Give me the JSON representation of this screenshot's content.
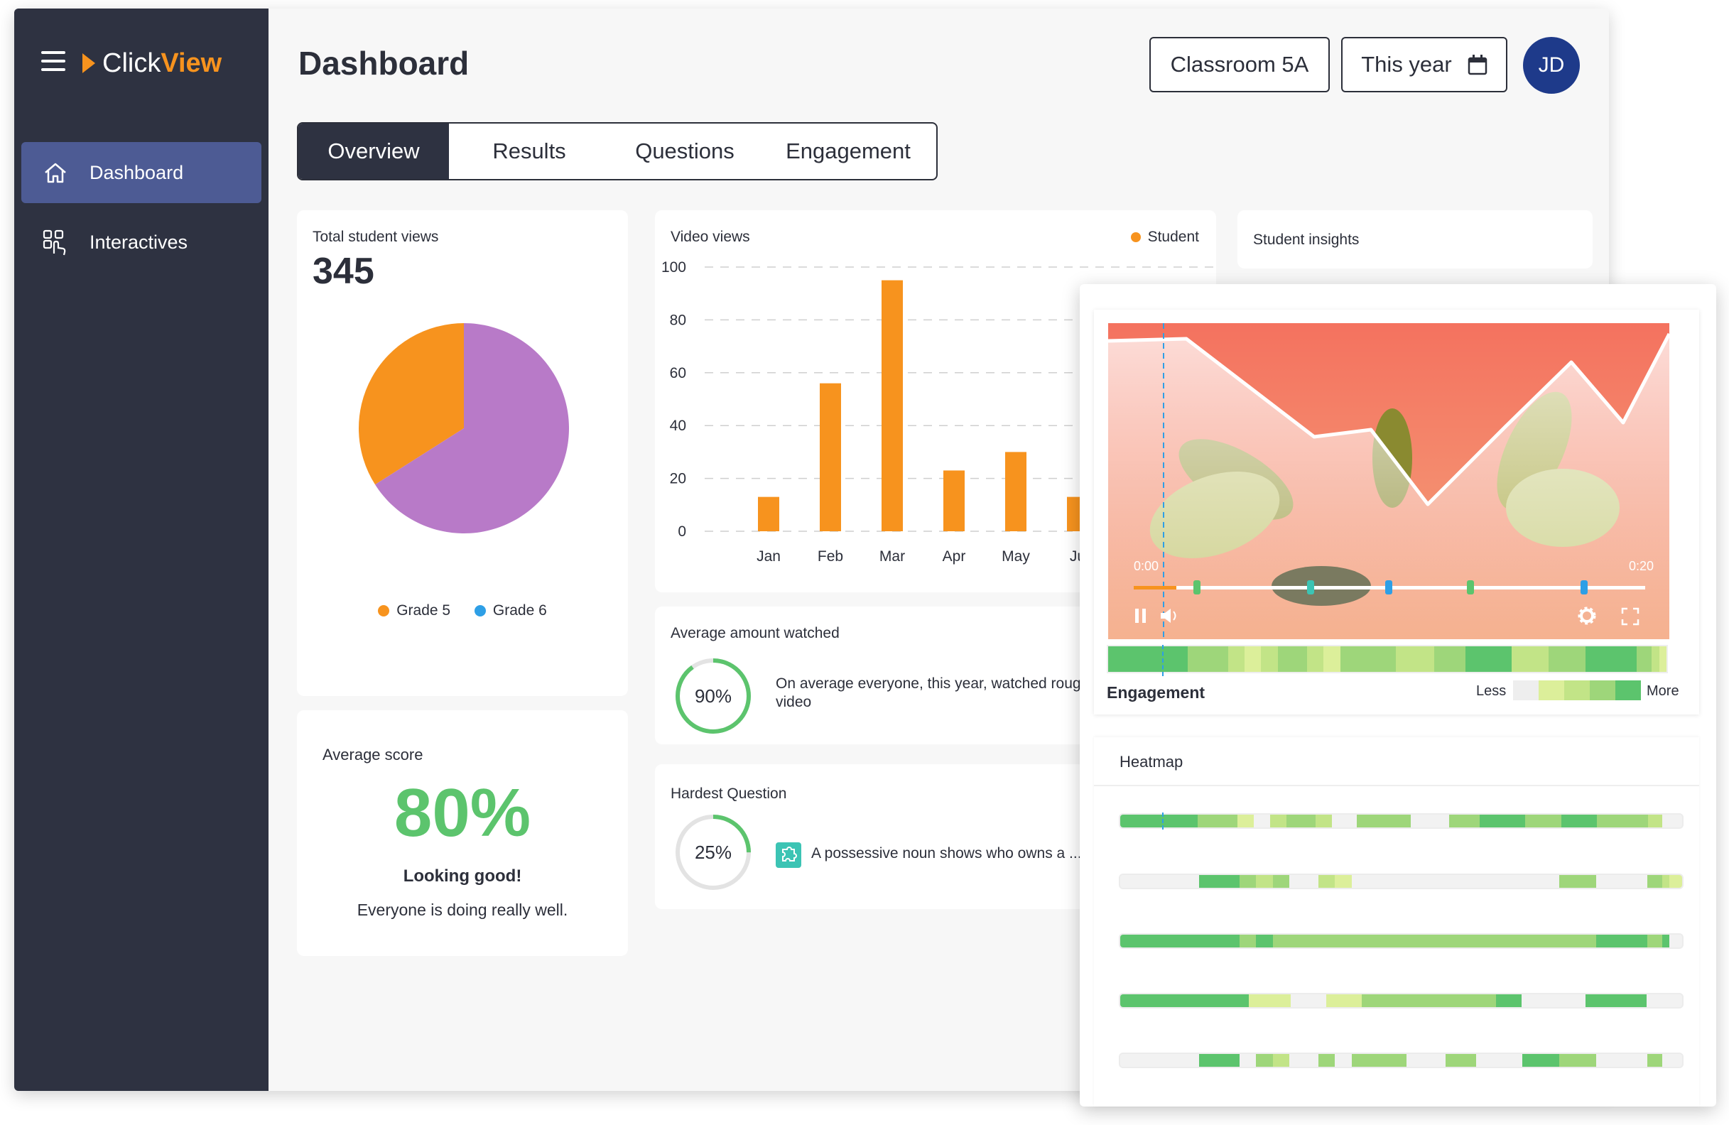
{
  "app": {
    "logo": {
      "part1": "Click",
      "part2": "View"
    },
    "sidebar": {
      "items": [
        {
          "label": "Dashboard",
          "icon": "home-icon",
          "active": true
        },
        {
          "label": "Interactives",
          "icon": "interactives-icon",
          "active": false
        }
      ]
    },
    "header": {
      "title": "Dashboard",
      "classroom": "Classroom 5A",
      "period": "This year",
      "avatar_initials": "JD"
    },
    "tabs": [
      {
        "label": "Overview",
        "active": true
      },
      {
        "label": "Results",
        "active": false
      },
      {
        "label": "Questions",
        "active": false
      },
      {
        "label": "Engagement",
        "active": false
      }
    ],
    "colors": {
      "accent": "#f7931e",
      "sidebar": "#2e3241",
      "active_nav": "#4d5b94",
      "green": "#5cc46d",
      "purple": "#b87ac8",
      "blue": "#2e9fe6"
    }
  },
  "total_views": {
    "label": "Total student views",
    "value": "345",
    "legend": [
      {
        "label": "Grade 5",
        "color": "#f7931e"
      },
      {
        "label": "Grade 6",
        "color": "#2e9fe6"
      }
    ]
  },
  "average_score": {
    "label": "Average score",
    "value": "80%",
    "headline": "Looking good!",
    "message": "Everyone is doing really well."
  },
  "video_views": {
    "label": "Video views",
    "legend": "Student",
    "y_ticks": [
      "100",
      "80",
      "60",
      "40",
      "20",
      "0"
    ]
  },
  "average_watched": {
    "label": "Average amount watched",
    "percent_text": "90%",
    "percent": 90,
    "text_line1": "On average everyone, this year, watched roug",
    "text_line2": "video"
  },
  "hardest_question": {
    "label": "Hardest Question",
    "percent_text": "25%",
    "percent": 25,
    "question": "A possessive noun shows who owns a ..."
  },
  "student_insights": {
    "label": "Student insights"
  },
  "engagement_overlay": {
    "time_start": "0:00",
    "time_end": "0:20",
    "engagement_label": "Engagement",
    "less_label": "Less",
    "more_label": "More",
    "heatmap_label": "Heatmap"
  },
  "chart_data": [
    {
      "type": "pie",
      "title": "Total student views",
      "categories": [
        "Grade 5",
        "Grade 6"
      ],
      "values": [
        34,
        66
      ],
      "colors": [
        "#f7931e",
        "#b87ac8"
      ]
    },
    {
      "type": "bar",
      "title": "Video views",
      "categories": [
        "Jan",
        "Feb",
        "Mar",
        "Apr",
        "May",
        "Ju"
      ],
      "series": [
        {
          "name": "Student",
          "values": [
            13,
            56,
            95,
            23,
            30,
            13
          ]
        }
      ],
      "ylim": [
        0,
        100
      ],
      "yticks": [
        0,
        20,
        40,
        60,
        80,
        100
      ],
      "grid": true,
      "legend_position": "top-right"
    }
  ]
}
